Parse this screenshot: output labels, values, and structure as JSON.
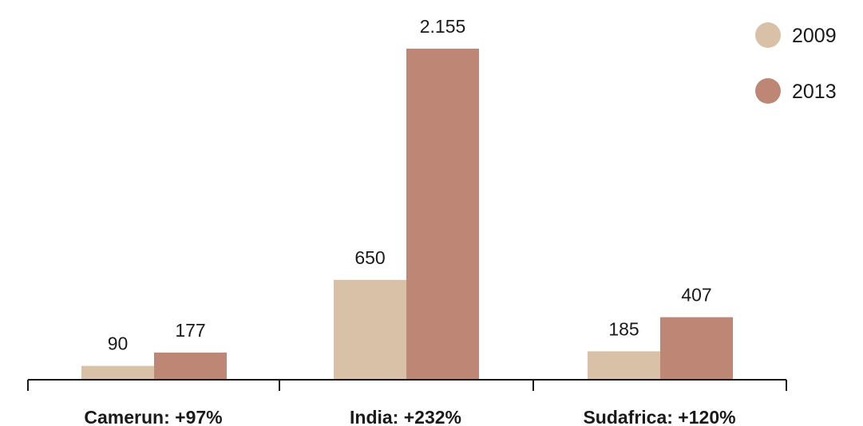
{
  "chart_data": {
    "type": "bar",
    "categories": [
      "Camerun: +97%",
      "India: +232%",
      "Sudafrica: +120%"
    ],
    "series": [
      {
        "name": "2009",
        "color": "#d9c1a7",
        "values": [
          90,
          650,
          185
        ],
        "value_labels": [
          "90",
          "650",
          "185"
        ]
      },
      {
        "name": "2013",
        "color": "#bd8675",
        "values": [
          177,
          2155,
          407
        ],
        "value_labels": [
          "177",
          "2.155",
          "407"
        ]
      }
    ],
    "title": "",
    "xlabel": "",
    "ylabel": "",
    "ylim": [
      0,
      2155
    ],
    "grid": false,
    "legend_position": "top-right"
  }
}
